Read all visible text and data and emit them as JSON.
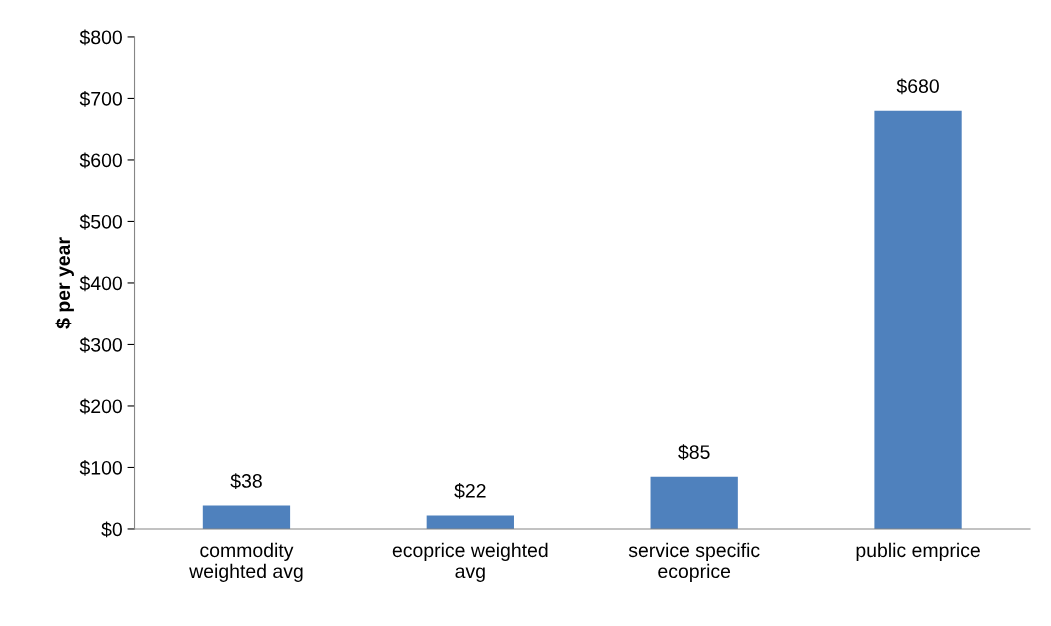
{
  "chart_data": {
    "type": "bar",
    "ylabel": "$ per year",
    "categories": [
      "commodity\nweighted avg",
      "ecoprice weighted\navg",
      "service specific\necoprice",
      "public emprice"
    ],
    "values": [
      38,
      22,
      85,
      680
    ],
    "value_labels": [
      "$38",
      "$22",
      "$85",
      "$680"
    ],
    "color": "#4f81bd",
    "ylim": [
      0,
      800
    ],
    "yticks": [
      {
        "value": 0,
        "label": "$0"
      },
      {
        "value": 100,
        "label": "$100"
      },
      {
        "value": 200,
        "label": "$200"
      },
      {
        "value": 300,
        "label": "$300"
      },
      {
        "value": 400,
        "label": "$400"
      },
      {
        "value": 500,
        "label": "$500"
      },
      {
        "value": 600,
        "label": "$600"
      },
      {
        "value": 700,
        "label": "$700"
      },
      {
        "value": 800,
        "label": "$800"
      }
    ],
    "grid": false,
    "legend": false
  }
}
